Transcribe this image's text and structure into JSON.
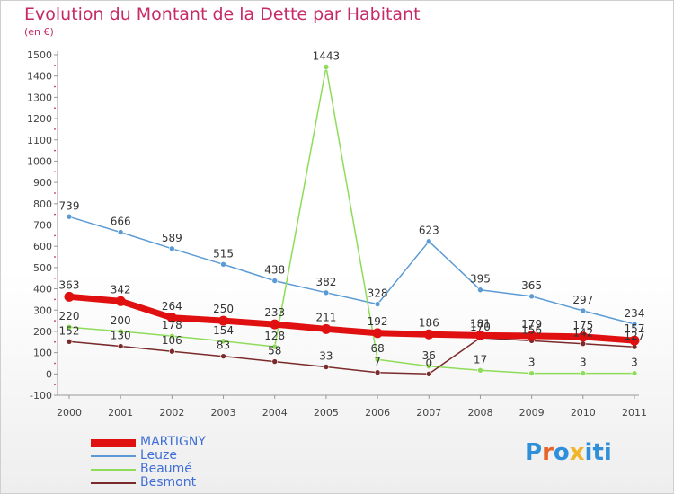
{
  "title": "Evolution du Montant de la Dette par Habitant",
  "unit": "(en €)",
  "brand": {
    "text": "Proxiti",
    "colors": [
      "#2f8fd8",
      "#e8642a",
      "#2f8fd8",
      "#f0b52a",
      "#2f8fd8",
      "#2f8fd8",
      "#2f8fd8"
    ]
  },
  "chart_data": {
    "type": "line",
    "categories": [
      "2000",
      "2001",
      "2002",
      "2003",
      "2004",
      "2005",
      "2006",
      "2007",
      "2008",
      "2009",
      "2010",
      "2011"
    ],
    "ylim": [
      -100,
      1500
    ],
    "yticks": [
      "-100",
      "0",
      "100",
      "200",
      "300",
      "400",
      "500",
      "600",
      "700",
      "800",
      "900",
      "1000",
      "1100",
      "1200",
      "1300",
      "1400",
      "1500"
    ],
    "grid": false,
    "legend_position": "bottom-left",
    "series": [
      {
        "name": "MARTIGNY",
        "color": "#e01010",
        "width": 7,
        "marker": 11,
        "values": [
          363,
          342,
          264,
          250,
          233,
          211,
          192,
          186,
          181,
          179,
          175,
          157
        ],
        "labels": [
          "363",
          "342",
          "264",
          "250",
          "233",
          "211",
          "192",
          "186",
          "181",
          "179",
          "175",
          "157"
        ]
      },
      {
        "name": "Leuze",
        "color": "#5b9bd5",
        "width": 1.5,
        "marker": 6,
        "values": [
          739,
          666,
          589,
          515,
          438,
          382,
          328,
          623,
          395,
          365,
          297,
          234
        ],
        "labels": [
          "739",
          "666",
          "589",
          "515",
          "438",
          "382",
          "328",
          "623",
          "395",
          "365",
          "297",
          "234"
        ]
      },
      {
        "name": "Beaumé",
        "color": "#8fdc5a",
        "width": 1.5,
        "marker": 6,
        "values": [
          220,
          200,
          178,
          154,
          128,
          1443,
          68,
          36,
          17,
          3,
          3,
          3
        ],
        "labels": [
          "220",
          "200",
          "178",
          "154",
          "128",
          "1443",
          "68",
          "36",
          "17",
          "3",
          "3",
          "3"
        ]
      },
      {
        "name": "Besmont",
        "color": "#7a2a2a",
        "width": 1.5,
        "marker": 6,
        "values": [
          152,
          130,
          106,
          83,
          58,
          33,
          7,
          0,
          170,
          156,
          142,
          127
        ],
        "labels": [
          "152",
          "130",
          "106",
          "83",
          "58",
          "33",
          "7",
          "0",
          "170",
          "156",
          "142",
          "127"
        ]
      }
    ]
  }
}
